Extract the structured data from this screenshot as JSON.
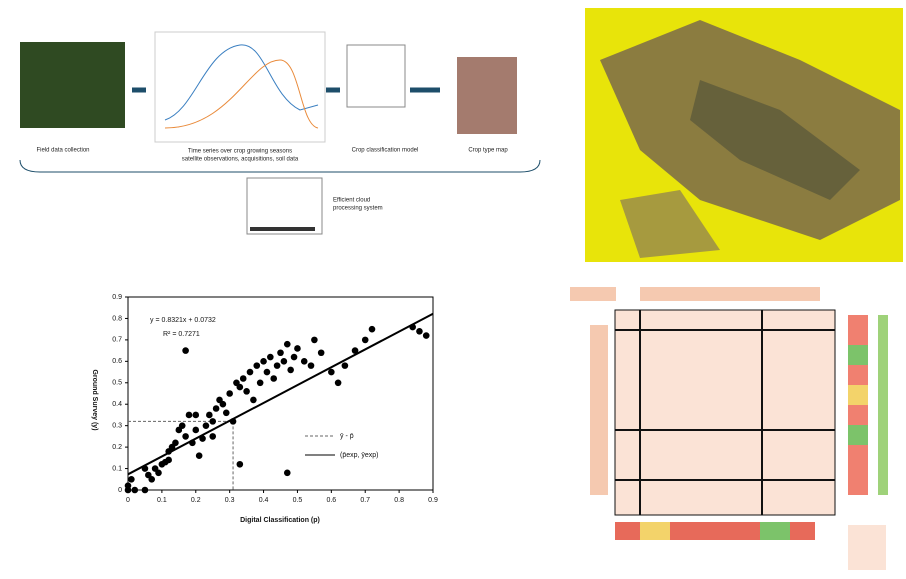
{
  "workflow": {
    "steps": [
      "Field data collection",
      "Time series over crop growing seasons",
      "satellite observations, acquisitions, soil data",
      "Crop classification model",
      "Crop type map"
    ],
    "cloud": [
      "Efficient cloud",
      "processing system"
    ]
  },
  "chart_data": {
    "type": "scatter",
    "xlabel": "Digital Classification (p)",
    "ylabel": "Ground Survey (y)",
    "equation": "y = 0.8321x + 0.0732",
    "r2": "R² = 0.7271",
    "color": "#000000",
    "x": [
      0,
      0,
      0.01,
      0.02,
      0.05,
      0.06,
      0.07,
      0.08,
      0.09,
      0.1,
      0.11,
      0.12,
      0.13,
      0.14,
      0.15,
      0.16,
      0.17,
      0.18,
      0.19,
      0.2,
      0.21,
      0.22,
      0.23,
      0.24,
      0.25,
      0.26,
      0.27,
      0.28,
      0.29,
      0.3,
      0.31,
      0.32,
      0.33,
      0.34,
      0.35,
      0.36,
      0.37,
      0.38,
      0.39,
      0.4,
      0.41,
      0.42,
      0.43,
      0.44,
      0.45,
      0.46,
      0.47,
      0.48,
      0.49,
      0.5,
      0.52,
      0.54,
      0.55,
      0.57,
      0.6,
      0.62,
      0.64,
      0.67,
      0.7,
      0.72,
      0.84,
      0.86,
      0.88,
      0.17,
      0.33,
      0.47,
      0.12,
      0.2,
      0.25,
      0.05
    ],
    "values": [
      0,
      0.02,
      0.05,
      0,
      0,
      0.07,
      0.05,
      0.1,
      0.08,
      0.12,
      0.13,
      0.18,
      0.2,
      0.22,
      0.28,
      0.3,
      0.25,
      0.35,
      0.22,
      0.28,
      0.16,
      0.24,
      0.3,
      0.35,
      0.32,
      0.38,
      0.42,
      0.4,
      0.36,
      0.45,
      0.32,
      0.5,
      0.48,
      0.52,
      0.46,
      0.55,
      0.42,
      0.58,
      0.5,
      0.6,
      0.55,
      0.62,
      0.52,
      0.58,
      0.64,
      0.6,
      0.68,
      0.56,
      0.62,
      0.66,
      0.6,
      0.58,
      0.7,
      0.64,
      0.55,
      0.5,
      0.58,
      0.65,
      0.7,
      0.75,
      0.76,
      0.74,
      0.72,
      0.65,
      0.12,
      0.08,
      0.14,
      0.35,
      0.25,
      0.1
    ],
    "guide": {
      "name": "ȳ - p̄",
      "x": [
        0,
        0.31,
        0.31
      ],
      "values": [
        0.32,
        0.32,
        0
      ]
    },
    "fit": {
      "name": "(p̄exp, ȳexp)",
      "x": [
        0,
        0.9
      ],
      "values": [
        0.0732,
        0.8221
      ]
    },
    "xlim": [
      0,
      0.9
    ],
    "ylim": [
      0,
      0.9
    ],
    "xticks": [
      0,
      0.1,
      0.2,
      0.3,
      0.4,
      0.5,
      0.6,
      0.7,
      0.8,
      0.9
    ],
    "yticks": [
      0,
      0.1,
      0.2,
      0.3,
      0.4,
      0.5,
      0.6,
      0.7,
      0.8,
      0.9
    ]
  }
}
